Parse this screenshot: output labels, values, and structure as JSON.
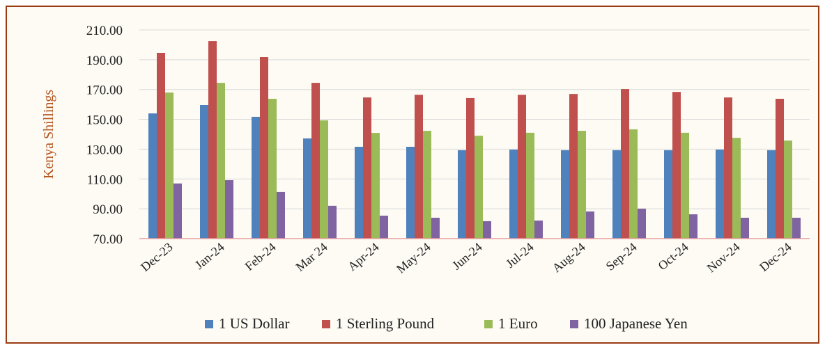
{
  "chart_data": {
    "type": "bar",
    "y_label": "Kenya Shillings",
    "categories": [
      "Dec-23",
      "Jan-24",
      "Feb-24",
      "Mar 24",
      "Apr-24",
      "May-24",
      "Jun-24",
      "Jul-24",
      "Aug-24",
      "Sep-24",
      "Oct-24",
      "Nov-24",
      "Dec-24"
    ],
    "series": [
      {
        "name": "1 US Dollar",
        "color": "#4f81bd",
        "values": [
          154.0,
          159.6,
          151.7,
          137.2,
          131.6,
          131.6,
          129.3,
          129.7,
          129.3,
          129.3,
          129.3,
          129.7,
          129.3
        ]
      },
      {
        "name": "1 Sterling Pound",
        "color": "#c0504d",
        "values": [
          194.6,
          202.5,
          191.8,
          174.5,
          164.7,
          166.5,
          164.3,
          166.5,
          167.0,
          170.3,
          168.4,
          164.7,
          163.8
        ]
      },
      {
        "name": "1 Euro",
        "color": "#9bbb59",
        "values": [
          168.0,
          174.5,
          163.8,
          149.3,
          140.9,
          142.3,
          139.0,
          141.0,
          142.3,
          143.3,
          141.0,
          137.6,
          135.8
        ]
      },
      {
        "name": "100 Japanese Yen",
        "color": "#8064a2",
        "values": [
          107.0,
          109.2,
          101.3,
          92.0,
          85.4,
          84.0,
          81.7,
          82.1,
          88.2,
          90.1,
          86.3,
          84.0,
          84.0
        ]
      }
    ],
    "ylim": [
      70,
      210
    ],
    "yticks": [
      {
        "value": 70,
        "label": "70.00"
      },
      {
        "value": 90,
        "label": "90.00"
      },
      {
        "value": 110,
        "label": "110.00"
      },
      {
        "value": 130,
        "label": "130.00"
      },
      {
        "value": 150,
        "label": "150.00"
      },
      {
        "value": 170,
        "label": "170.00"
      },
      {
        "value": 190,
        "label": "190.00"
      },
      {
        "value": 210,
        "label": "210.00"
      }
    ],
    "grid": true,
    "legend": "bottom"
  }
}
